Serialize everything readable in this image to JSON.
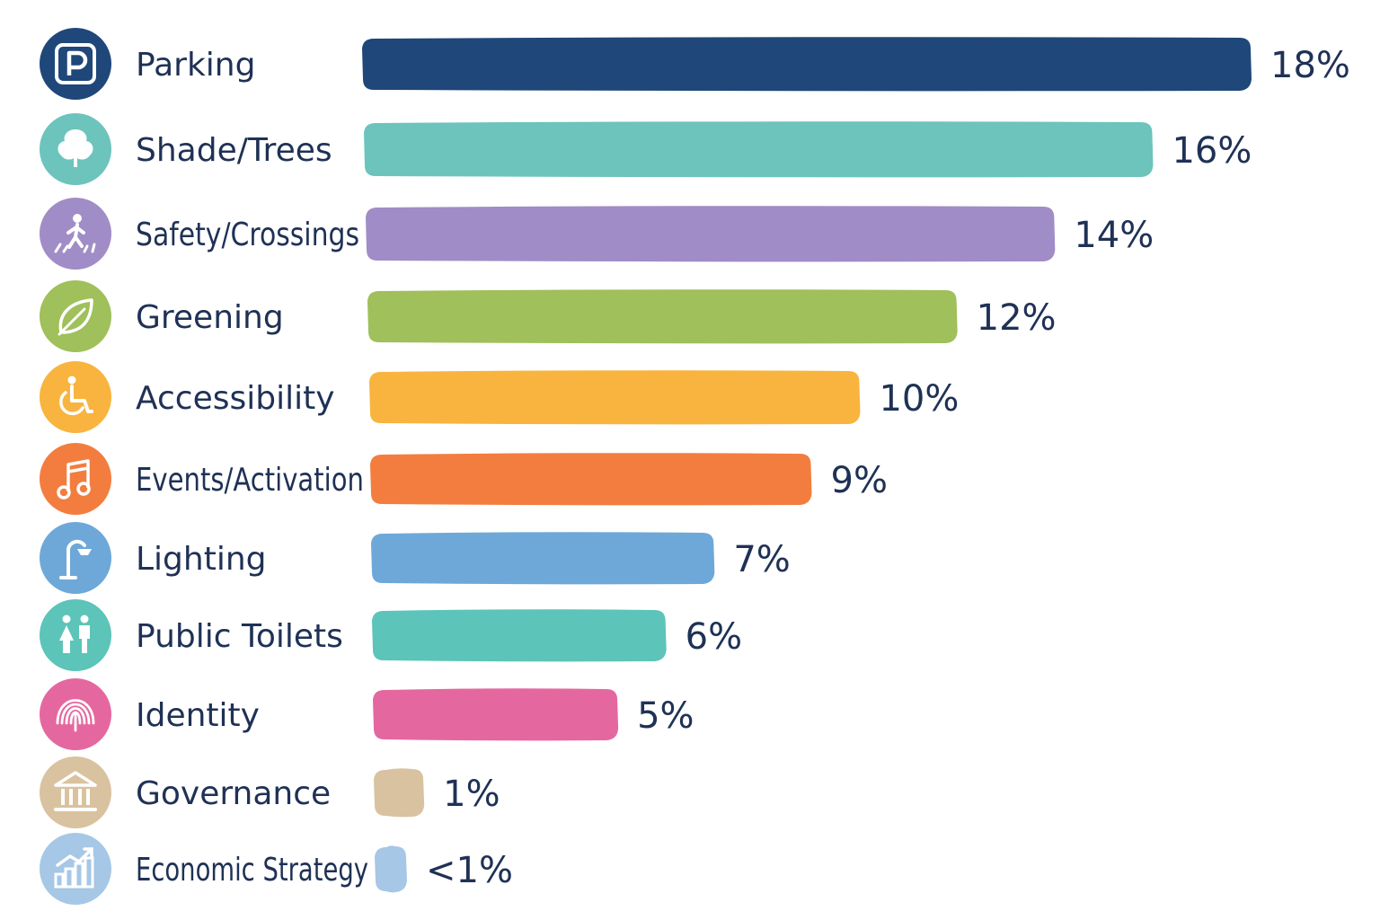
{
  "chart_data": {
    "type": "bar",
    "orientation": "horizontal",
    "title": "",
    "xlabel": "",
    "ylabel": "",
    "xlim": [
      0,
      18
    ],
    "grid": false,
    "legend": "none",
    "categories": [
      "Parking",
      "Shade/Trees",
      "Safety/Crossings",
      "Greening",
      "Accessibility",
      "Events/Activation",
      "Lighting",
      "Public Toilets",
      "Identity",
      "Governance",
      "Economic Strategy"
    ],
    "values": [
      18,
      16,
      14,
      12,
      10,
      9,
      7,
      6,
      5,
      1,
      0.5
    ],
    "value_labels": [
      "18%",
      "16%",
      "14%",
      "12%",
      "10%",
      "9%",
      "7%",
      "6%",
      "5%",
      "1%",
      "<1%"
    ],
    "colors": [
      "#1f4779",
      "#6cc4bc",
      "#a08cc6",
      "#9fc05a",
      "#f8b43e",
      "#f37d3e",
      "#6ea8d8",
      "#5cc4b8",
      "#e4689f",
      "#d9c29f",
      "#a6c7e6"
    ],
    "icons": [
      "parking-icon",
      "tree-icon",
      "pedestrian-crossing-icon",
      "leaf-icon",
      "wheelchair-icon",
      "music-note-icon",
      "street-lamp-icon",
      "restroom-icon",
      "fingerprint-icon",
      "government-building-icon",
      "growth-chart-icon"
    ]
  }
}
